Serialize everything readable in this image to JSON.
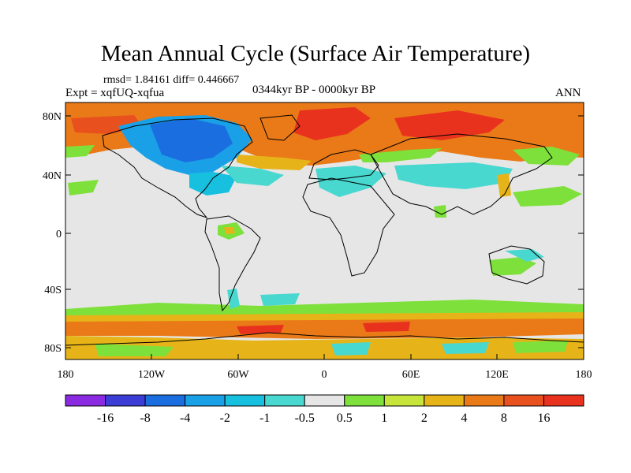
{
  "title": "Mean Annual Cycle (Surface Air Temperature)",
  "stats": "rmsd= 1.84161 diff= 0.446667",
  "experiment": "Expt = xqfUQ-xqfua",
  "period": "0344kyr BP - 0000kyr BP",
  "season": "ANN",
  "lat_ticks": [
    "80N",
    "40N",
    "0",
    "40S",
    "80S"
  ],
  "lon_ticks": [
    "180",
    "120W",
    "60W",
    "0",
    "60E",
    "120E",
    "180"
  ],
  "colorbar": {
    "labels": [
      "-16",
      "-8",
      "-4",
      "-2",
      "-1",
      "-0.5",
      "0.5",
      "1",
      "2",
      "4",
      "8",
      "16"
    ],
    "colors": [
      "#8a2be2",
      "#3c3cd6",
      "#1a6ee0",
      "#1aa0e6",
      "#18c0e0",
      "#48d8d0",
      "#e6e6e6",
      "#7ee03a",
      "#c6e43a",
      "#e6b418",
      "#ea7a18",
      "#e8501e",
      "#e8321e"
    ]
  },
  "map_colors": {
    "land_outline": "#000000",
    "neutral": "#e6e6e6"
  }
}
